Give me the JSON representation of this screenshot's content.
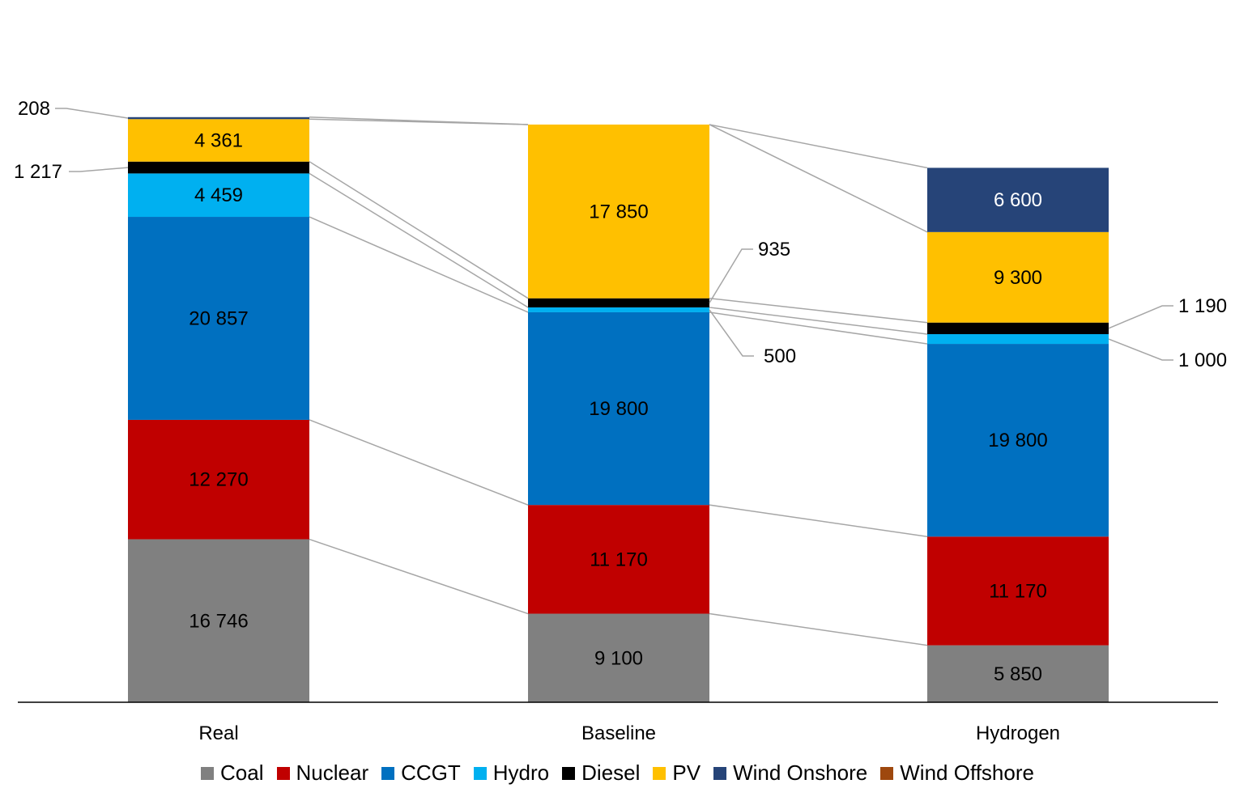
{
  "chart_data": {
    "type": "bar",
    "stacked": true,
    "categories": [
      "Real",
      "Baseline",
      "Hydrogen"
    ],
    "series": [
      {
        "name": "Coal",
        "color": "#808080",
        "values": [
          16746,
          9100,
          5850
        ],
        "labels": [
          "16 746",
          "9 100",
          "5 850"
        ]
      },
      {
        "name": "Nuclear",
        "color": "#C00000",
        "values": [
          12270,
          11170,
          11170
        ],
        "labels": [
          "12 270",
          "11 170",
          "11 170"
        ]
      },
      {
        "name": "CCGT",
        "color": "#0070C0",
        "values": [
          20857,
          19800,
          19800
        ],
        "labels": [
          "20 857",
          "19 800",
          "19 800"
        ]
      },
      {
        "name": "Hydro",
        "color": "#00B0F0",
        "values": [
          4459,
          500,
          1000
        ],
        "labels": [
          "4 459",
          "500",
          "1 000"
        ]
      },
      {
        "name": "Diesel",
        "color": "#000000",
        "values": [
          1217,
          935,
          1190
        ],
        "labels": [
          "1 217",
          "935",
          "1 190"
        ]
      },
      {
        "name": "PV",
        "color": "#FFC000",
        "values": [
          4361,
          17850,
          9300
        ],
        "labels": [
          "4 361",
          "17 850",
          "9 300"
        ]
      },
      {
        "name": "Wind Onshore",
        "color": "#264478",
        "values": [
          208,
          0,
          6600
        ],
        "labels": [
          "208",
          "",
          "6 600"
        ]
      },
      {
        "name": "Wind Offshore",
        "color": "#9E480E",
        "values": [
          0,
          0,
          0
        ],
        "labels": [
          "",
          "",
          ""
        ]
      }
    ],
    "ylim": [
      0,
      61000
    ],
    "legend_position": "bottom",
    "grid": false
  }
}
